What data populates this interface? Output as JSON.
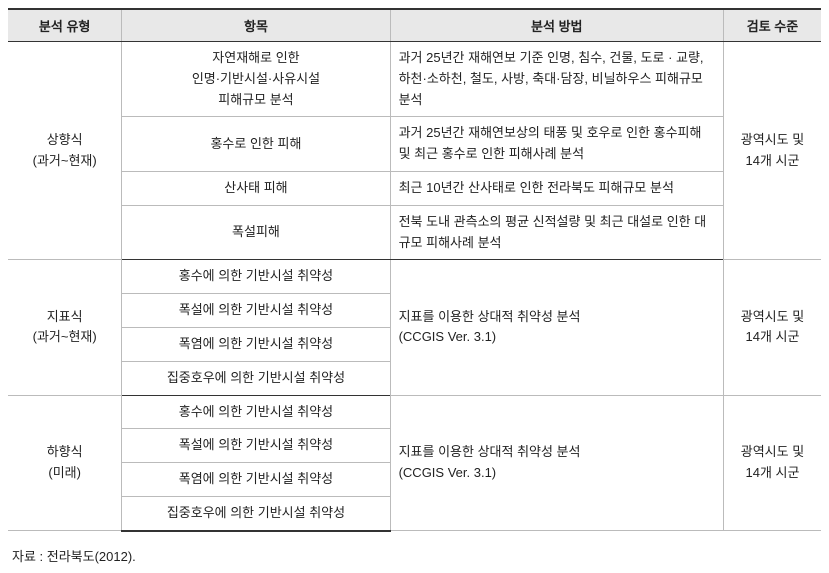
{
  "table": {
    "headers": [
      "분석 유형",
      "항목",
      "분석 방법",
      "검토 수준"
    ],
    "colWidths": [
      "14%",
      "33%",
      "41%",
      "12%"
    ],
    "groups": [
      {
        "type": "상향식\n(과거~현재)",
        "review": "광역시도 및\n14개 시군",
        "rows": [
          {
            "item": "자연재해로 인한\n인명·기반시설·사유시설\n피해규모 분석",
            "method": "과거 25년간 재해연보 기준 인명, 침수, 건물, 도로 · 교량, 하천·소하천, 철도, 사방, 축대·담장, 비닐하우스 피해규모 분석"
          },
          {
            "item": "홍수로 인한 피해",
            "method": "과거 25년간 재해연보상의 태풍 및 호우로 인한 홍수피해 및 최근 홍수로 인한 피해사례 분석"
          },
          {
            "item": "산사태 피해",
            "method": "최근 10년간 산사태로 인한 전라북도 피해규모 분석"
          },
          {
            "item": "폭설피해",
            "method": "전북 도내 관측소의 평균 신적설량 및 최근 대설로 인한 대규모 피해사례 분석"
          }
        ]
      },
      {
        "type": "지표식\n(과거~현재)",
        "review": "광역시도 및\n14개 시군",
        "method": "지표를 이용한 상대적 취약성 분석\n(CCGIS Ver. 3.1)",
        "rows": [
          {
            "item": "홍수에 의한 기반시설 취약성"
          },
          {
            "item": "폭설에 의한 기반시설 취약성"
          },
          {
            "item": "폭염에 의한 기반시설 취약성"
          },
          {
            "item": "집중호우에 의한 기반시설 취약성"
          }
        ]
      },
      {
        "type": "하향식\n(미래)",
        "review": "광역시도 및\n14개 시군",
        "method": "지표를 이용한 상대적 취약성 분석\n(CCGIS Ver. 3.1)",
        "rows": [
          {
            "item": "홍수에 의한 기반시설 취약성"
          },
          {
            "item": "폭설에 의한 기반시설 취약성"
          },
          {
            "item": "폭염에 의한 기반시설 취약성"
          },
          {
            "item": "집중호우에 의한 기반시설 취약성"
          }
        ]
      }
    ]
  },
  "source": "자료 : 전라북도(2012)."
}
